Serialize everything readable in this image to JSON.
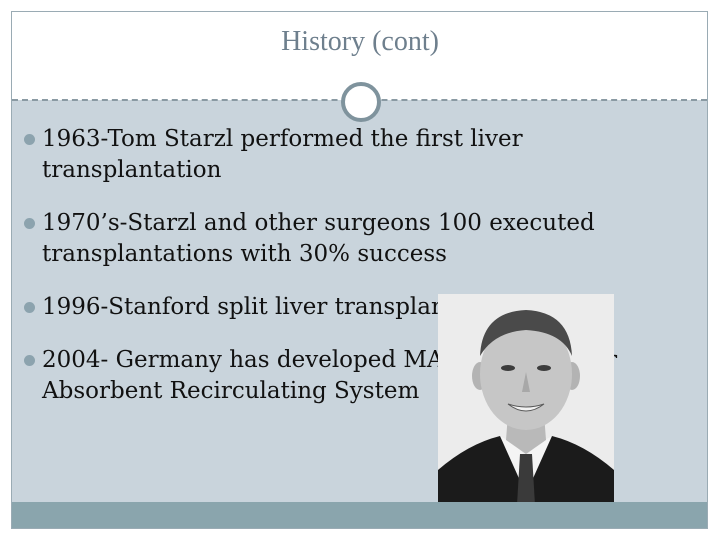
{
  "slide": {
    "title": "History (cont)",
    "bullets": [
      {
        "line1": "1963-Tom Starzl performed the first liver",
        "line2": "transplantation"
      },
      {
        "line1": "1970’s-Starzl and other surgeons 100 executed",
        "line2": "transplantations with 30% success"
      },
      {
        "line1": "1996-Stanford split liver transplant",
        "line2": ""
      },
      {
        "line1": "2004- Germany has developed Molecular Adsorbent Recirculating System",
        "line1a": "2004- Germany has developed MARS - Molecular",
        "line2": "Absorbent Recirculating System"
      }
    ],
    "photo": {
      "icon": "portrait-photo"
    },
    "colors": {
      "background": "#c9d4dc",
      "title": "#6e7f8d",
      "accent": "#8aa5ad",
      "bullet": "#8ca3ae"
    }
  }
}
